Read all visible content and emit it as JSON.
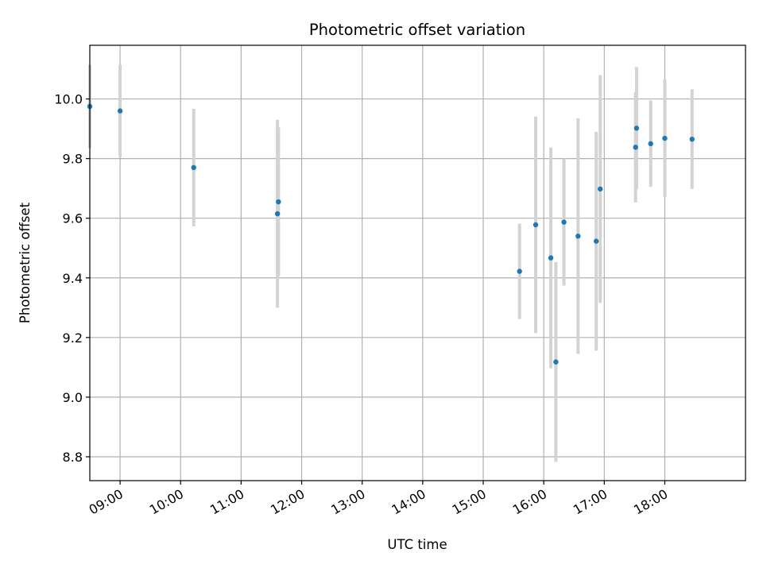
{
  "chart_data": {
    "type": "scatter",
    "title": "Photometric offset variation",
    "xlabel": "UTC time",
    "ylabel": "Photometric offset",
    "x_axis": "time",
    "xlim": [
      "08:30",
      "19:20"
    ],
    "ylim": [
      8.72,
      10.18
    ],
    "x_ticks": [
      "09:00",
      "10:00",
      "11:00",
      "12:00",
      "13:00",
      "14:00",
      "15:00",
      "16:00",
      "17:00",
      "18:00"
    ],
    "y_ticks": [
      8.8,
      9.0,
      9.2,
      9.4,
      9.6,
      9.8,
      10.0
    ],
    "grid": true,
    "legend": false,
    "colors": {
      "marker": "#1f77b4",
      "errorbar": "#d3d3d3",
      "grid": "#b0b0b0"
    },
    "points": [
      {
        "time": "08:30",
        "y": 9.975,
        "err": 0.14
      },
      {
        "time": "09:00",
        "y": 9.96,
        "err": 0.155
      },
      {
        "time": "10:13",
        "y": 9.77,
        "err": 0.197
      },
      {
        "time": "11:36",
        "y": 9.615,
        "err": 0.315
      },
      {
        "time": "11:37",
        "y": 9.655,
        "err": 0.25
      },
      {
        "time": "15:36",
        "y": 9.422,
        "err": 0.16
      },
      {
        "time": "15:52",
        "y": 9.578,
        "err": 0.363
      },
      {
        "time": "16:07",
        "y": 9.467,
        "err": 0.37
      },
      {
        "time": "16:12",
        "y": 9.118,
        "err": 0.335
      },
      {
        "time": "16:20",
        "y": 9.587,
        "err": 0.213
      },
      {
        "time": "16:34",
        "y": 9.54,
        "err": 0.395
      },
      {
        "time": "16:52",
        "y": 9.523,
        "err": 0.367
      },
      {
        "time": "16:56",
        "y": 9.698,
        "err": 0.382
      },
      {
        "time": "17:31",
        "y": 9.838,
        "err": 0.185
      },
      {
        "time": "17:32",
        "y": 9.902,
        "err": 0.205
      },
      {
        "time": "17:46",
        "y": 9.85,
        "err": 0.145
      },
      {
        "time": "18:00",
        "y": 9.868,
        "err": 0.197
      },
      {
        "time": "18:27",
        "y": 9.865,
        "err": 0.167
      }
    ]
  }
}
